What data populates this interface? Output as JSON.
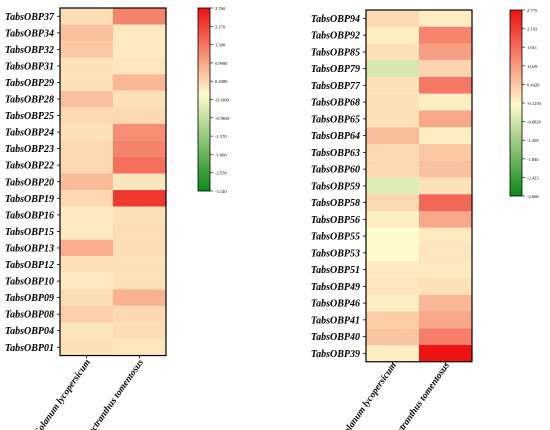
{
  "chart_data": [
    {
      "type": "heatmap",
      "columns": [
        "Solanum lycopersicum",
        "Plectranthus tomentosus"
      ],
      "rows": [
        "TabsOBP37",
        "TabsOBP34",
        "TabsOBP32",
        "TabsOBP31",
        "TabsOBP29",
        "TabsOBP28",
        "TabsOBP25",
        "TabsOBP24",
        "TabsOBP23",
        "TabsOBP22",
        "TabsOBP20",
        "TabsOBP19",
        "TabsOBP16",
        "TabsOBP15",
        "TabsOBP13",
        "TabsOBP12",
        "TabsOBP10",
        "TabsOBP09",
        "TabsOBP08",
        "TabsOBP04",
        "TabsOBP01"
      ],
      "values": [
        [
          0.35,
          1.4
        ],
        [
          0.7,
          0.2
        ],
        [
          0.6,
          0.2
        ],
        [
          0.3,
          0.25
        ],
        [
          0.3,
          0.8
        ],
        [
          0.7,
          0.3
        ],
        [
          0.4,
          0.4
        ],
        [
          0.3,
          1.3
        ],
        [
          0.4,
          1.4
        ],
        [
          0.4,
          1.65
        ],
        [
          0.75,
          0.25
        ],
        [
          0.4,
          2.3
        ],
        [
          0.2,
          0.3
        ],
        [
          0.2,
          0.35
        ],
        [
          0.9,
          0.35
        ],
        [
          0.3,
          0.3
        ],
        [
          0.2,
          0.3
        ],
        [
          0.35,
          0.85
        ],
        [
          0.5,
          0.4
        ],
        [
          0.25,
          0.35
        ],
        [
          0.3,
          0.25
        ]
      ],
      "colorbar": {
        "min": -3.1,
        "max": 2.76,
        "tick_labels": [
          "2.760",
          "2.170",
          "1.580",
          "0.9900",
          "0.4000",
          "-0.1900",
          "-0.7800",
          "-1.370",
          "-1.960",
          "-2.550",
          "-3.140"
        ],
        "colors": {
          "high": "#ee1111",
          "mid": "#fffbcc",
          "low": "#0b8a16"
        }
      }
    },
    {
      "type": "heatmap",
      "columns": [
        "Solanum lycopersicum",
        "Plectranthus tomentosus"
      ],
      "rows": [
        "TabsOBP94",
        "TabsOBP92",
        "TabsOBP85",
        "TabsOBP79",
        "TabsOBP77",
        "TabsOBP68",
        "TabsOBP65",
        "TabsOBP64",
        "TabsOBP63",
        "TabsOBP60",
        "TabsOBP59",
        "TabsOBP58",
        "TabsOBP56",
        "TabsOBP55",
        "TabsOBP53",
        "TabsOBP51",
        "TabsOBP49",
        "TabsOBP46",
        "TabsOBP41",
        "TabsOBP40",
        "TabsOBP39"
      ],
      "values": [
        [
          0.4,
          0.15
        ],
        [
          0.15,
          1.4
        ],
        [
          0.3,
          1.1
        ],
        [
          -0.45,
          0.45
        ],
        [
          0.3,
          1.55
        ],
        [
          0.3,
          0.15
        ],
        [
          0.3,
          1.0
        ],
        [
          0.75,
          0.15
        ],
        [
          0.4,
          0.6
        ],
        [
          0.4,
          0.7
        ],
        [
          -0.35,
          0.3
        ],
        [
          0.4,
          1.75
        ],
        [
          0.15,
          1.0
        ],
        [
          0.0,
          0.2
        ],
        [
          0.0,
          0.25
        ],
        [
          0.2,
          0.2
        ],
        [
          0.25,
          0.3
        ],
        [
          0.15,
          0.8
        ],
        [
          0.55,
          1.0
        ],
        [
          0.65,
          1.5
        ],
        [
          0.15,
          2.75
        ]
      ],
      "colorbar": {
        "min": -2.666,
        "max": 2.775,
        "tick_labels": [
          "2.775",
          "2.193",
          "1.611",
          "1.029",
          "0.4420",
          "-0.1250",
          "-0.6820",
          "-1.269",
          "-1.846",
          "-2.423",
          "-2.666"
        ],
        "colors": {
          "high": "#ee1111",
          "mid": "#fffbcc",
          "low": "#0b8a16"
        }
      }
    }
  ]
}
